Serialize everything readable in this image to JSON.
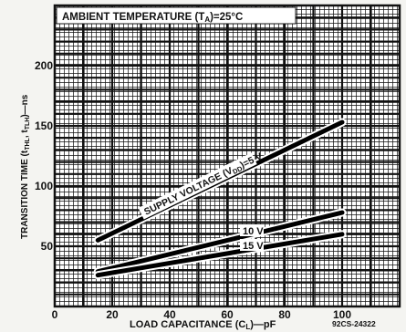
{
  "chart_data": {
    "type": "line",
    "title": "AMBIENT TEMPERATURE (TA)=25°C",
    "title_parts": {
      "prefix": "AMBIENT TEMPERATURE (T",
      "sub": "A",
      "suffix": ")=25°C"
    },
    "xlabel": "LOAD CAPACITANCE (CL)—pF",
    "xlabel_parts": {
      "prefix": "LOAD CAPACITANCE (C",
      "sub": "L",
      "suffix": ")—pF"
    },
    "ylabel": "TRANSITION TIME (tTHL, tTLH)—ns",
    "ylabel_parts": {
      "a": "TRANSITION TIME (t",
      "b": "THL",
      "c": ", t",
      "d": "TLH",
      "e": ")—ns"
    },
    "xlim": [
      0,
      120
    ],
    "ylim": [
      0,
      250
    ],
    "x_ticks": [
      0,
      20,
      40,
      60,
      80,
      100
    ],
    "y_ticks": [
      50,
      100,
      150,
      200
    ],
    "grid": true,
    "series": [
      {
        "name": "SUPPLY VOLTAGE (VDD)=5 V",
        "label_parts": {
          "prefix": "SUPPLY VOLTAGE (V",
          "sub": "DD",
          "suffix": ")=5 V"
        },
        "x": [
          15,
          100
        ],
        "y": [
          55,
          153
        ]
      },
      {
        "name": "10 V",
        "x": [
          15,
          100
        ],
        "y": [
          29,
          78
        ]
      },
      {
        "name": "15 V",
        "x": [
          15,
          100
        ],
        "y": [
          26,
          60
        ]
      }
    ],
    "figure_id": "92CS-24322"
  }
}
